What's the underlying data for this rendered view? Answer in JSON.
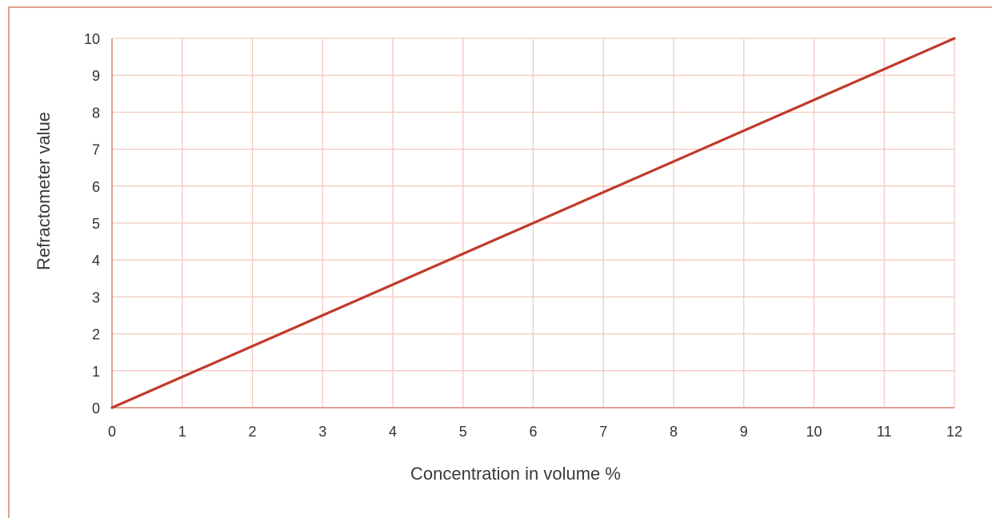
{
  "chart_data": {
    "type": "line",
    "xlabel": "Concentration in volume %",
    "ylabel": "Refractometer value",
    "xlim": [
      0,
      12
    ],
    "ylim": [
      0,
      10
    ],
    "x_ticks": [
      "0",
      "1",
      "2",
      "3",
      "4",
      "5",
      "6",
      "7",
      "8",
      "9",
      "10",
      "11",
      "12"
    ],
    "y_ticks": [
      "0",
      "1",
      "2",
      "3",
      "4",
      "5",
      "6",
      "7",
      "8",
      "9",
      "10"
    ],
    "grid": true,
    "series": [
      {
        "x": [
          0,
          12
        ],
        "y": [
          0,
          10
        ]
      }
    ],
    "colors": {
      "grid": "#f2c9bf",
      "axis": "#e0a090",
      "line": "#c0392b",
      "frame": "#e2a192"
    }
  }
}
